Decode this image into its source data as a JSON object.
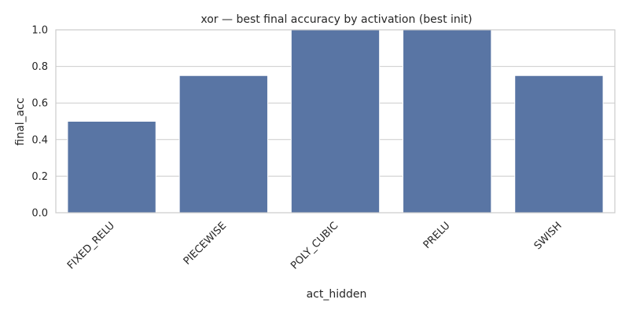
{
  "chart_data": {
    "type": "bar",
    "title": "xor — best final accuracy by activation (best init)",
    "xlabel": "act_hidden",
    "ylabel": "final_acc",
    "categories": [
      "FIXED_RELU",
      "PIECEWISE",
      "POLY_CUBIC",
      "PRELU",
      "SWISH"
    ],
    "values": [
      0.5,
      0.75,
      1.0,
      1.0,
      0.75
    ],
    "ylim": [
      0,
      1.0
    ],
    "yticks": [
      0.0,
      0.2,
      0.4,
      0.6,
      0.8,
      1.0
    ],
    "ytick_labels": [
      "0.0",
      "0.2",
      "0.4",
      "0.6",
      "0.8",
      "1.0"
    ],
    "grid": true,
    "bar_color": "#5975a4"
  }
}
